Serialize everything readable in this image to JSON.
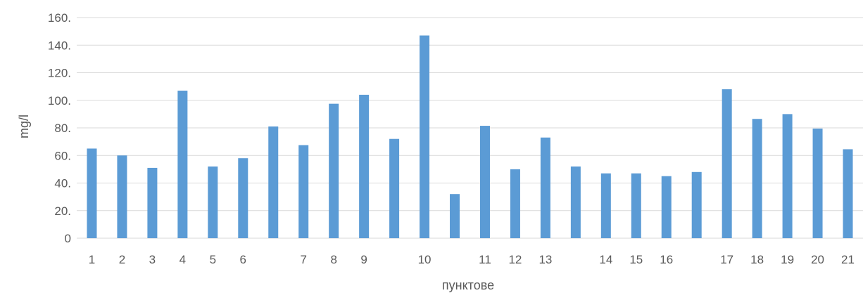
{
  "chart_data": {
    "type": "bar",
    "title": "",
    "xlabel": "пунктове",
    "ylabel": "mg/l",
    "ylim": [
      0,
      160
    ],
    "yticks": [
      "0",
      "20.",
      "40.",
      "60.",
      "80.",
      "100.",
      "120.",
      "140.",
      "160."
    ],
    "grid": true,
    "bar_color": "#5b9bd5",
    "categories": [
      "1",
      "2",
      "3",
      "4",
      "5",
      "6",
      "",
      "7",
      "8",
      "9",
      "",
      "10",
      "",
      "11",
      "12",
      "13",
      "",
      "14",
      "15",
      "16",
      "",
      "17",
      "18",
      "19",
      "20",
      "21"
    ],
    "values": [
      65,
      60,
      51,
      107,
      52,
      58,
      81,
      67.5,
      97.5,
      104,
      72,
      147,
      32,
      81.5,
      50,
      73,
      52,
      47,
      47,
      45,
      48,
      108,
      86.5,
      90,
      79.5,
      64.5
    ]
  }
}
